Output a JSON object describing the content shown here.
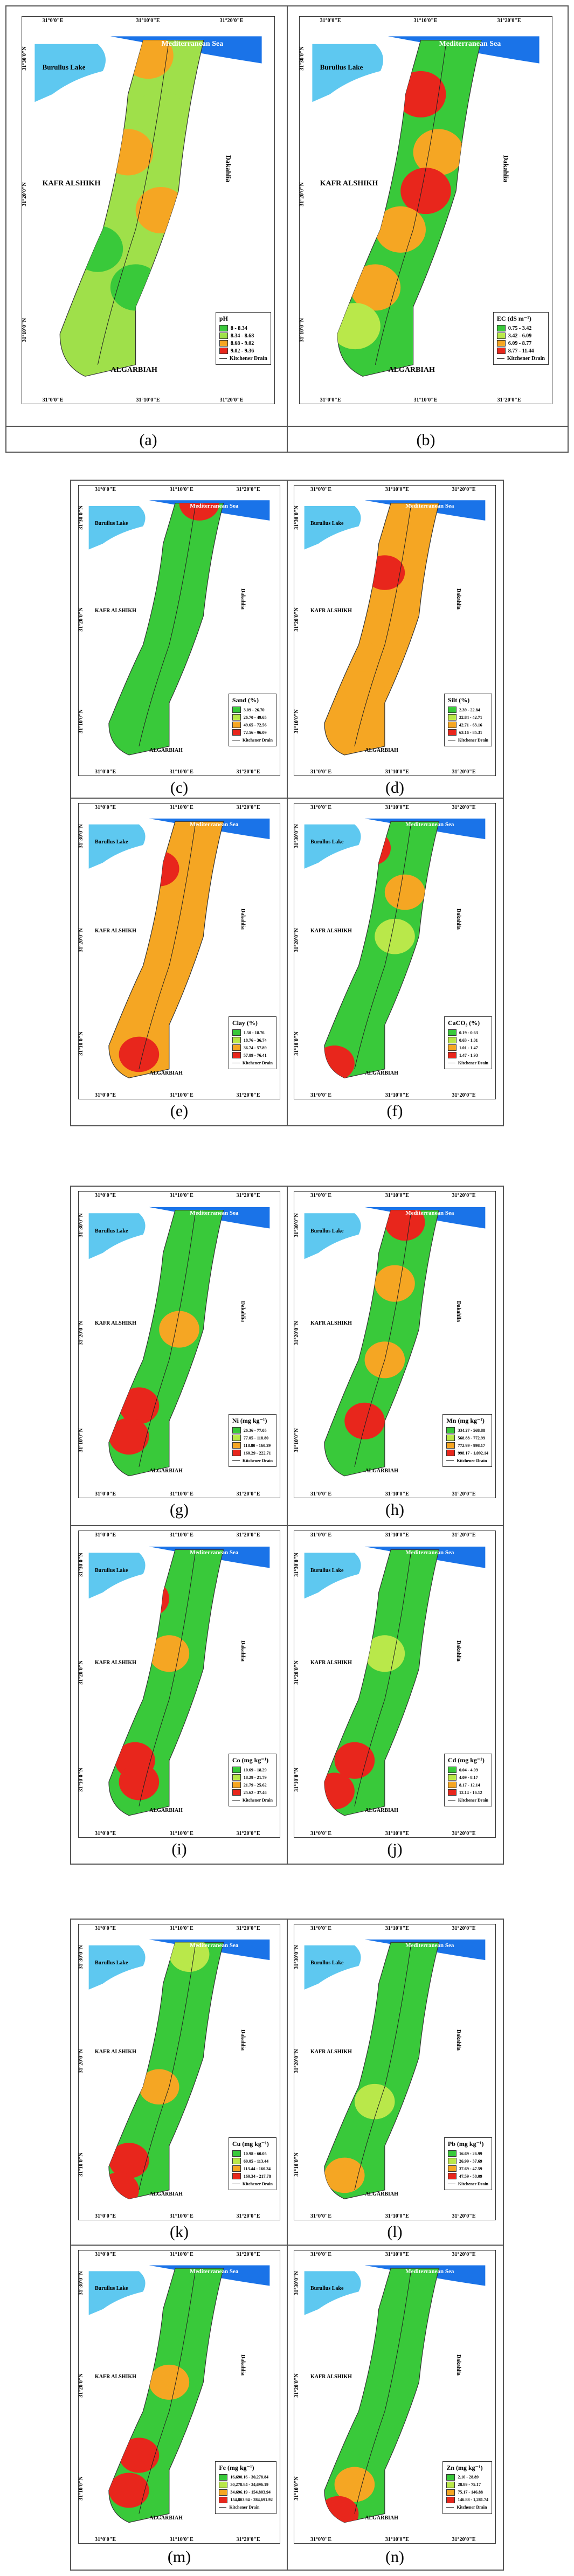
{
  "labels": {
    "sea": "Mediterranean Sea",
    "lake": "Burullus Lake",
    "kafr": "KAFR ALSHIKH",
    "dakahlia": "Dakahlia",
    "algarbiah": "ALGARBIAH",
    "drain": "Kitchener Drain",
    "lon_left": "31°0'0\"E",
    "lon_mid": "31°10'0\"E",
    "lon_right": "31°20'0\"E",
    "lat_top": "31°30'0\"N",
    "lat_mid": "31°20'0\"N",
    "lat_bot": "31°10'0\"N"
  },
  "panels": [
    {
      "caption": "(a)",
      "legend_title": "pH",
      "classes": [
        "8 - 8.34",
        "8.34 - 8.68",
        "8.68 - 9.02",
        "9.02 - 9.36"
      ],
      "colors": [
        "#39c93a",
        "#9fe04a",
        "#f5a623",
        "#e8261c"
      ]
    },
    {
      "caption": "(b)",
      "legend_title": "EC (dS m⁻¹)",
      "classes": [
        "0.75 - 3.42",
        "3.42 - 6.09",
        "6.09 - 8.77",
        "8.77 - 11.44"
      ],
      "colors": [
        "#39c93a",
        "#b9e84a",
        "#f5a623",
        "#e8261c"
      ]
    },
    {
      "caption": "(c)",
      "legend_title": "Sand (%)",
      "classes": [
        "3.09 - 26.70",
        "26.70 - 49.65",
        "49.65 - 72.56",
        "72.56 - 96.09"
      ],
      "colors": [
        "#39c93a",
        "#b9e84a",
        "#f5a623",
        "#e8261c"
      ]
    },
    {
      "caption": "(d)",
      "legend_title": "Silt (%)",
      "classes": [
        "2.39 - 22.84",
        "22.84 - 42.71",
        "42.71 - 63.16",
        "63.16 - 85.31"
      ],
      "colors": [
        "#39c93a",
        "#b9e84a",
        "#f5a623",
        "#e8261c"
      ]
    },
    {
      "caption": "(e)",
      "legend_title": "Clay (%)",
      "classes": [
        "1.50 - 18.76",
        "18.76 - 36.74",
        "36.74 - 57.89",
        "57.89 - 76.41"
      ],
      "colors": [
        "#39c93a",
        "#b9e84a",
        "#f5a623",
        "#e8261c"
      ]
    },
    {
      "caption": "(f)",
      "legend_title": "CaCO₃ (%)",
      "classes": [
        "0.19 - 0.63",
        "0.63 - 1.01",
        "1.01 - 1.47",
        "1.47 - 1.93"
      ],
      "colors": [
        "#39c93a",
        "#b9e84a",
        "#f5a623",
        "#e8261c"
      ]
    },
    {
      "caption": "(g)",
      "legend_title": "Ni (mg kg⁻¹)",
      "classes": [
        "26.36 - 77.05",
        "77.05 - 118.80",
        "118.80 - 160.29",
        "160.29 - 222.71"
      ],
      "colors": [
        "#39c93a",
        "#b9e84a",
        "#f5a623",
        "#e8261c"
      ]
    },
    {
      "caption": "(h)",
      "legend_title": "Mn (mg kg⁻¹)",
      "classes": [
        "334.27 - 568.88",
        "568.88 - 772.99",
        "772.99 - 998.17",
        "998.17 - 1,092.14"
      ],
      "colors": [
        "#39c93a",
        "#b9e84a",
        "#f5a623",
        "#e8261c"
      ]
    },
    {
      "caption": "(i)",
      "legend_title": "Co (mg kg⁻¹)",
      "classes": [
        "10.69 - 18.29",
        "18.29 - 21.79",
        "21.79 - 25.62",
        "25.62 - 37.46"
      ],
      "colors": [
        "#39c93a",
        "#b9e84a",
        "#f5a623",
        "#e8261c"
      ]
    },
    {
      "caption": "(j)",
      "legend_title": "Cd (mg kg⁻¹)",
      "classes": [
        "0.04 - 4.09",
        "4.09 - 8.17",
        "8.17 - 12.14",
        "12.14 - 16.12"
      ],
      "colors": [
        "#39c93a",
        "#b9e84a",
        "#f5a623",
        "#e8261c"
      ]
    },
    {
      "caption": "(k)",
      "legend_title": "Cu (mg kg⁻¹)",
      "classes": [
        "10.98 - 60.05",
        "60.05 - 113.44",
        "113.44 - 160.34",
        "160.34 - 217.78"
      ],
      "colors": [
        "#39c93a",
        "#b9e84a",
        "#f5a623",
        "#e8261c"
      ]
    },
    {
      "caption": "(l)",
      "legend_title": "Pb (mg kg⁻¹)",
      "classes": [
        "16.69 - 26.99",
        "26.99 - 37.69",
        "37.69 - 47.59",
        "47.59 - 58.09"
      ],
      "colors": [
        "#39c93a",
        "#b9e84a",
        "#f5a623",
        "#e8261c"
      ]
    },
    {
      "caption": "(m)",
      "legend_title": "Fe (mg kg⁻¹)",
      "classes": [
        "16,690.16 - 30,278.84",
        "30,278.84 - 34,696.19",
        "34,696.19 - 154,803.94",
        "154,803.94 - 284,691.92"
      ],
      "colors": [
        "#39c93a",
        "#b9e84a",
        "#f5a623",
        "#e8261c"
      ]
    },
    {
      "caption": "(n)",
      "legend_title": "Zn (mg kg⁻¹)",
      "classes": [
        "2.10 - 28.89",
        "28.89 - 75.17",
        "75.17 - 146.88",
        "146.88 - 1,281.74"
      ],
      "colors": [
        "#39c93a",
        "#b9e84a",
        "#f5a623",
        "#e8261c"
      ]
    }
  ]
}
